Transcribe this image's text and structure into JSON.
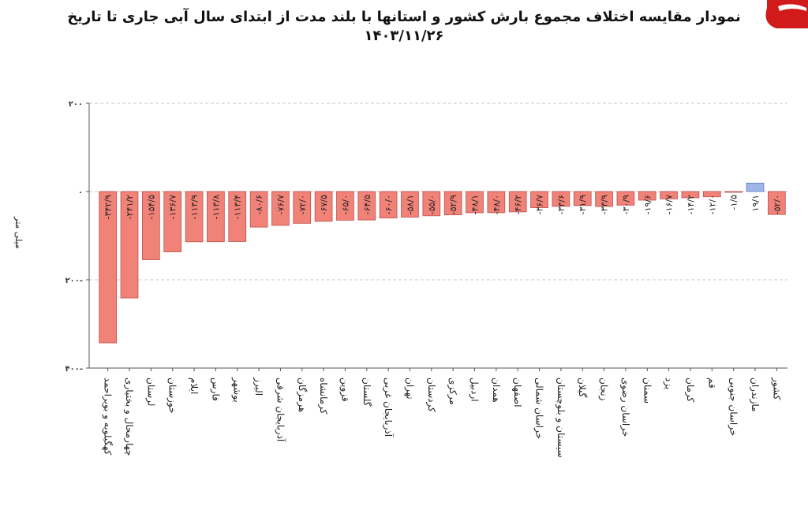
{
  "title_line1": "نمودار مقایسه اختلاف مجموع بارش کشور و استانها با بلند مدت از ابتدای سال آبی جاری تا تاریخ",
  "title_line2": "۱۴۰۳/۱۱/۲۶",
  "chart_data": {
    "type": "bar",
    "title": "نمودار مقایسه اختلاف مجموع بارش کشور و استانها با بلند مدت از ابتدای سال آبی جاری تا تاریخ ۱۴۰۳/۱۱/۲۶",
    "ylabel": "میلی متر",
    "xlabel": "",
    "ylim": [
      -400,
      200
    ],
    "yticks": [
      200,
      0,
      -200,
      -400
    ],
    "ytick_labels": [
      "۲۰۰",
      "۰",
      "۲۰۰-",
      "۴۰۰-"
    ],
    "grid": true,
    "categories": [
      "کهگیلویه و بویراحمد",
      "چهارمحال و بختیاری",
      "لرستان",
      "خوزستان",
      "ایلام",
      "فارس",
      "بوشهر",
      "البرز",
      "آذربایجان شرقی",
      "هرمزگان",
      "کرمانشاه",
      "قزوین",
      "گلستان",
      "آذربایجان غربی",
      "تهران",
      "کردستان",
      "مرکزی",
      "اردبیل",
      "همدان",
      "اصفهان",
      "خراسان شمالی",
      "سیستان و بلوچستان",
      "گیلان",
      "زنجان",
      "خراسان رضوی",
      "سمنان",
      "یزد",
      "کرمان",
      "قم",
      "خراسان جنوبی",
      "مازندران",
      "کشور"
    ],
    "values": [
      -342.9,
      -241.2,
      -154.5,
      -136.7,
      -113.9,
      -113.8,
      -113.4,
      -80.6,
      -76.7,
      -72.0,
      -67.5,
      -65.0,
      -64.5,
      -60.0,
      -58.1,
      -55.0,
      -52.9,
      -48.1,
      -48.0,
      -46.2,
      -36.7,
      -33.6,
      -31.9,
      -33.9,
      -30.9,
      -19.6,
      -16.7,
      -14.2,
      -12.0,
      -1.5,
      19.1,
      -52.0
    ],
    "value_labels": [
      "-۳۴۲/۹",
      "-۲۴۱/۲",
      "-۱۵۴/۵",
      "-۱۳۶/۷",
      "-۱۱۳/۹",
      "-۱۱۳/۸",
      "-۱۱۳/۴",
      "-۸۰/۶",
      "-۷۶/۷",
      "-۷۲/۰",
      "-۶۷/۵",
      "-۶۵/۰",
      "-۶۴/۵",
      "-۶۰/۰",
      "-۵۸/۱",
      "-۵۵/۰",
      "-۵۲/۹",
      "-۴۸/۱",
      "-۴۸/۰",
      "-۴۶/۲",
      "-۳۶/۷",
      "-۳۳/۶",
      "-۳۱/۹",
      "-۳۳/۹",
      "-۳۰/۹",
      "-۱۹/۶",
      "-۱۶/۷",
      "-۱۴/۲",
      "-۱۲/۰",
      "-۱/۵",
      "۱۹/۱",
      "-۵۲/۰"
    ],
    "colors": {
      "negative": "#f08278",
      "negative_stroke": "#c0504d",
      "positive": "#9fb6ea",
      "positive_stroke": "#5b7bc9",
      "grid": "#c8c8c8",
      "axis": "#555555"
    }
  }
}
